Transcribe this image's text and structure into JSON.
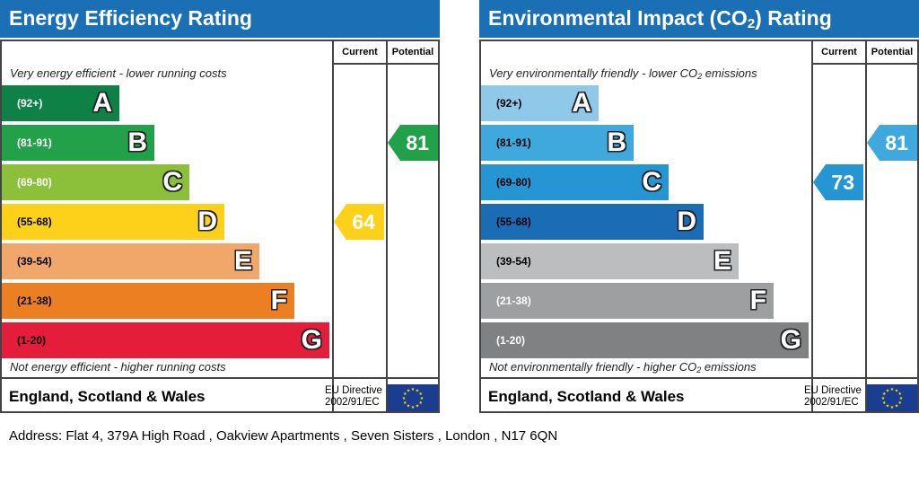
{
  "chart_data": [
    {
      "type": "bar",
      "title": "Energy Efficiency Rating",
      "columns": [
        "Current",
        "Potential"
      ],
      "top_note": "Very energy efficient - lower running costs",
      "bottom_note": "Not energy efficient - higher running costs",
      "bands": [
        {
          "range": "(92+)",
          "letter": "A",
          "color": "#0e8147",
          "text_color": "#ffffff"
        },
        {
          "range": "(81-91)",
          "letter": "B",
          "color": "#23a04a",
          "text_color": "#ffffff"
        },
        {
          "range": "(69-80)",
          "letter": "C",
          "color": "#8cbf3a",
          "text_color": "#ffffff"
        },
        {
          "range": "(55-68)",
          "letter": "D",
          "color": "#fdd11a",
          "text_color": "#000000"
        },
        {
          "range": "(39-54)",
          "letter": "E",
          "color": "#f2a76a",
          "text_color": "#000000"
        },
        {
          "range": "(21-38)",
          "letter": "F",
          "color": "#ed7f23",
          "text_color": "#000000"
        },
        {
          "range": "(1-20)",
          "letter": "G",
          "color": "#e31d3a",
          "text_color": "#000000"
        }
      ],
      "current": {
        "value": "64",
        "band": "D",
        "color": "#fdd11a"
      },
      "potential": {
        "value": "81",
        "band": "B",
        "color": "#23a04a"
      },
      "region": "England, Scotland & Wales",
      "directive_line1": "EU Directive",
      "directive_line2": "2002/91/EC"
    },
    {
      "type": "bar",
      "title_main": "Environmental Impact (CO",
      "title_sub": "2",
      "title_end": ") Rating",
      "columns": [
        "Current",
        "Potential"
      ],
      "top_note_main": "Very environmentally friendly - lower CO",
      "top_note_sub": "2",
      "top_note_end": " emissions",
      "bottom_note_main": "Not environmentally friendly - higher CO",
      "bottom_note_sub": "2",
      "bottom_note_end": " emissions",
      "bands": [
        {
          "range": "(92+)",
          "letter": "A",
          "color": "#8ec9ea",
          "text_color": "#000000"
        },
        {
          "range": "(81-91)",
          "letter": "B",
          "color": "#3fa9de",
          "text_color": "#000000"
        },
        {
          "range": "(69-80)",
          "letter": "C",
          "color": "#2596d3",
          "text_color": "#000000"
        },
        {
          "range": "(55-68)",
          "letter": "D",
          "color": "#1a6db5",
          "text_color": "#000000"
        },
        {
          "range": "(39-54)",
          "letter": "E",
          "color": "#bcbdbf",
          "text_color": "#000000"
        },
        {
          "range": "(21-38)",
          "letter": "F",
          "color": "#9e9fa1",
          "text_color": "#ffffff"
        },
        {
          "range": "(1-20)",
          "letter": "G",
          "color": "#808183",
          "text_color": "#ffffff"
        }
      ],
      "current": {
        "value": "73",
        "band": "C",
        "color": "#2596d3"
      },
      "potential": {
        "value": "81",
        "band": "B",
        "color": "#3fa9de"
      },
      "region": "England, Scotland & Wales",
      "directive_line1": "EU Directive",
      "directive_line2": "2002/91/EC"
    }
  ],
  "address": "Address: Flat 4, 379A High Road , Oakview Apartments , Seven Sisters , London , N17 6QN"
}
